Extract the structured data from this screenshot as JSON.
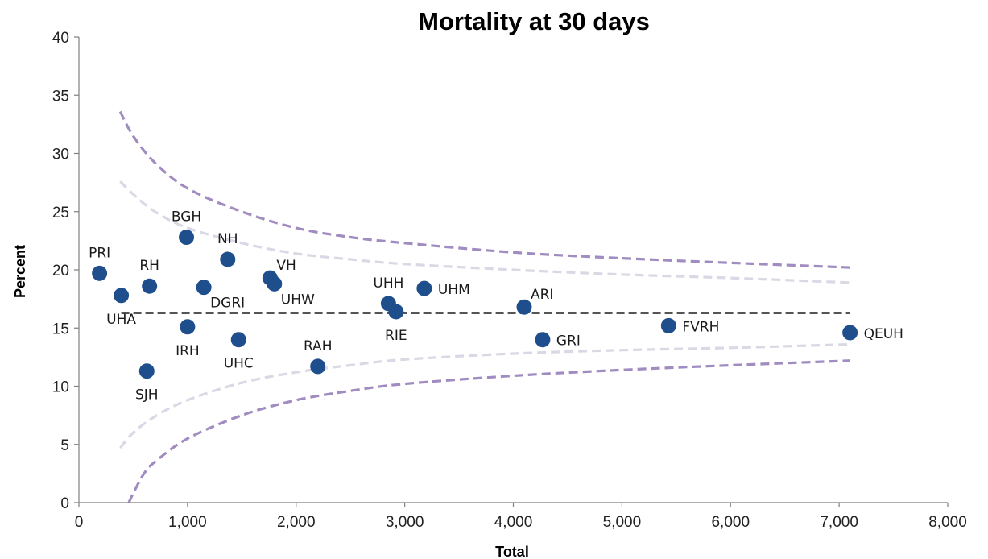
{
  "chart_data": {
    "type": "scatter",
    "title": "Mortality at 30 days",
    "xlabel": "Total",
    "ylabel": "Percent",
    "xlim": [
      0,
      8000
    ],
    "ylim": [
      0,
      40
    ],
    "x_ticks": [
      0,
      1000,
      2000,
      3000,
      4000,
      5000,
      6000,
      7000,
      8000
    ],
    "x_tick_labels": [
      "0",
      "1,000",
      "2,000",
      "3,000",
      "4,000",
      "5,000",
      "6,000",
      "7,000",
      "8,000"
    ],
    "y_ticks": [
      0,
      5,
      10,
      15,
      20,
      25,
      30,
      35,
      40
    ],
    "y_tick_labels": [
      "0",
      "5",
      "10",
      "15",
      "20",
      "25",
      "30",
      "35",
      "40"
    ],
    "grid": false,
    "legend": "none",
    "points": [
      {
        "label": "PRI",
        "x": 190,
        "y": 19.7,
        "label_pos": "above"
      },
      {
        "label": "UHA",
        "x": 390,
        "y": 17.8,
        "label_pos": "below"
      },
      {
        "label": "SJH",
        "x": 625,
        "y": 11.3,
        "label_pos": "below"
      },
      {
        "label": "RH",
        "x": 650,
        "y": 18.6,
        "label_pos": "above"
      },
      {
        "label": "BGH",
        "x": 990,
        "y": 22.8,
        "label_pos": "above"
      },
      {
        "label": "IRH",
        "x": 1000,
        "y": 15.1,
        "label_pos": "below"
      },
      {
        "label": "DGRI",
        "x": 1150,
        "y": 18.5,
        "label_pos": "right-below"
      },
      {
        "label": "NH",
        "x": 1370,
        "y": 20.9,
        "label_pos": "above"
      },
      {
        "label": "UHC",
        "x": 1470,
        "y": 14.0,
        "label_pos": "below"
      },
      {
        "label": "VH",
        "x": 1760,
        "y": 19.3,
        "label_pos": "above-right"
      },
      {
        "label": "UHW",
        "x": 1800,
        "y": 18.8,
        "label_pos": "right-below"
      },
      {
        "label": "RAH",
        "x": 2200,
        "y": 11.7,
        "label_pos": "above"
      },
      {
        "label": "UHH",
        "x": 2850,
        "y": 17.1,
        "label_pos": "above"
      },
      {
        "label": "RIE",
        "x": 2920,
        "y": 16.4,
        "label_pos": "below"
      },
      {
        "label": "UHM",
        "x": 3180,
        "y": 18.4,
        "label_pos": "right"
      },
      {
        "label": "ARI",
        "x": 4100,
        "y": 16.8,
        "label_pos": "above-right"
      },
      {
        "label": "GRI",
        "x": 4270,
        "y": 14.0,
        "label_pos": "right"
      },
      {
        "label": "FVRH",
        "x": 5430,
        "y": 15.2,
        "label_pos": "right"
      },
      {
        "label": "QEUH",
        "x": 7100,
        "y": 14.6,
        "label_pos": "right"
      }
    ],
    "mean_line": {
      "y": 16.3,
      "x_range": [
        390,
        7100
      ],
      "color": "#555555"
    },
    "control_limits": {
      "outer": {
        "color": "#a08cc0",
        "upper": [
          [
            380,
            33.6
          ],
          [
            500,
            31.5
          ],
          [
            700,
            29.2
          ],
          [
            1000,
            27.0
          ],
          [
            1500,
            25.0
          ],
          [
            2000,
            23.6
          ],
          [
            2500,
            22.8
          ],
          [
            3000,
            22.3
          ],
          [
            4000,
            21.5
          ],
          [
            5000,
            21.0
          ],
          [
            6000,
            20.6
          ],
          [
            7100,
            20.2
          ]
        ],
        "lower": [
          [
            460,
            0.0
          ],
          [
            500,
            0.8
          ],
          [
            600,
            2.5
          ],
          [
            700,
            3.5
          ],
          [
            1000,
            5.5
          ],
          [
            1500,
            7.5
          ],
          [
            2000,
            8.8
          ],
          [
            2500,
            9.6
          ],
          [
            3000,
            10.2
          ],
          [
            4000,
            10.9
          ],
          [
            5000,
            11.4
          ],
          [
            6000,
            11.8
          ],
          [
            7100,
            12.2
          ]
        ]
      },
      "inner": {
        "color": "#d9d9e6",
        "upper": [
          [
            380,
            27.6
          ],
          [
            500,
            26.5
          ],
          [
            700,
            25.0
          ],
          [
            1000,
            23.6
          ],
          [
            1500,
            22.3
          ],
          [
            2000,
            21.4
          ],
          [
            2500,
            20.9
          ],
          [
            3000,
            20.5
          ],
          [
            4000,
            20.0
          ],
          [
            5000,
            19.6
          ],
          [
            6000,
            19.3
          ],
          [
            7100,
            18.9
          ]
        ],
        "lower": [
          [
            380,
            4.7
          ],
          [
            500,
            6.0
          ],
          [
            700,
            7.4
          ],
          [
            1000,
            8.8
          ],
          [
            1500,
            10.3
          ],
          [
            2000,
            11.2
          ],
          [
            2500,
            11.8
          ],
          [
            3000,
            12.3
          ],
          [
            4000,
            12.8
          ],
          [
            5000,
            13.1
          ],
          [
            6000,
            13.3
          ],
          [
            7100,
            13.6
          ]
        ]
      }
    },
    "marker_color": "#1f4e8c"
  }
}
